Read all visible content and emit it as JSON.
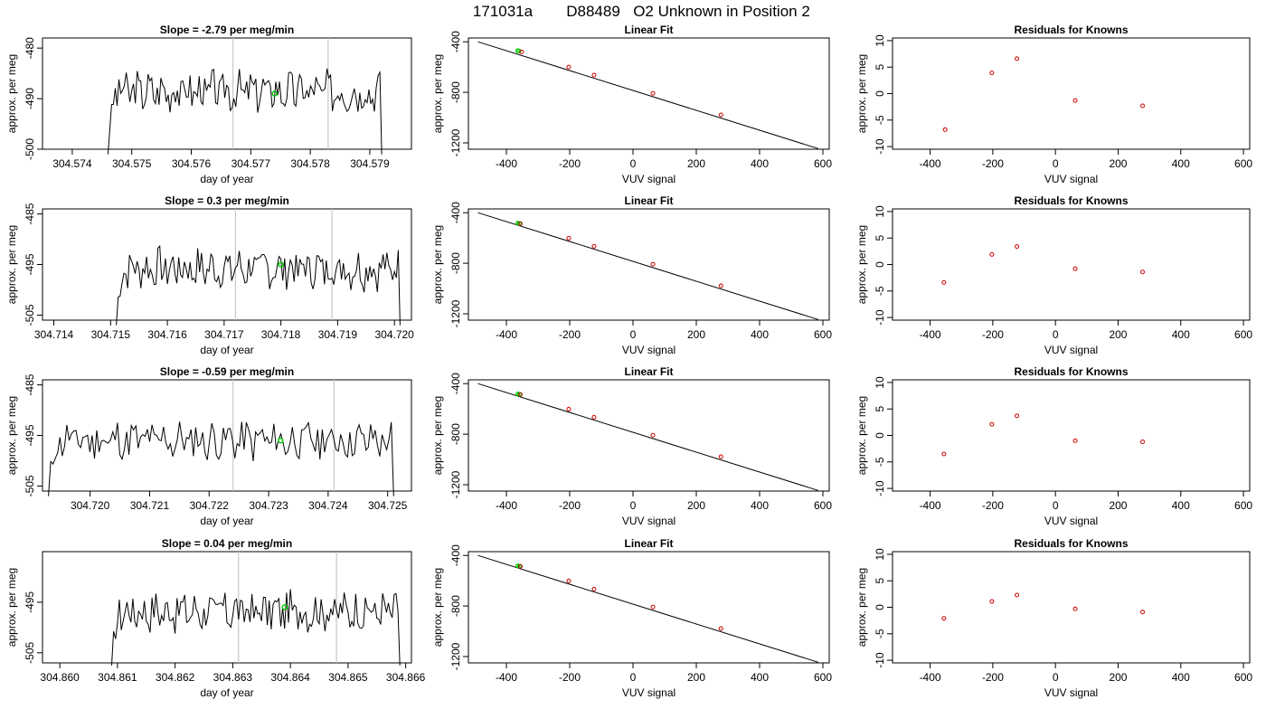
{
  "header": {
    "run_id": "171031a",
    "sample_id": "D88489",
    "description": "O2 Unknown in Position  2"
  },
  "colors": {
    "trace": "#000000",
    "vertical_marker": "#c8c8c8",
    "unknown_point": "#00cc00",
    "known_point": "#cc0000",
    "fit_line": "#000000"
  },
  "chart_data": [
    {
      "type": "line",
      "panel": "time-series",
      "row": 1,
      "title": "Slope =  -2.79  per meg/min",
      "xlabel": "day of year",
      "ylabel": "approx. per meg",
      "xlim": [
        304.5735,
        304.5797
      ],
      "ylim": [
        -500,
        -478
      ],
      "xticks": [
        304.574,
        304.575,
        304.576,
        304.577,
        304.578,
        304.579
      ],
      "xtick_labels": [
        "304.574",
        "304.575",
        "304.576",
        "304.577",
        "304.578",
        "304.579"
      ],
      "yticks": [
        -500,
        -490,
        -480
      ],
      "ytick_labels": [
        "-500",
        "-490",
        "-480"
      ],
      "vlines": [
        304.5767,
        304.5783
      ],
      "trace_x_start": 304.5746,
      "trace_x_end": 304.5792,
      "trace_level": -488.5,
      "trace_edge": -501,
      "seed": 3,
      "unknown_marker": {
        "x": 304.5774,
        "y": -489
      }
    },
    {
      "type": "scatter",
      "panel": "linear-fit",
      "row": 1,
      "title": "Linear Fit",
      "xlabel": "VUV signal",
      "ylabel": "approx. per meg",
      "xlim": [
        -520,
        620
      ],
      "ylim": [
        -1250,
        -370
      ],
      "xticks": [
        -400,
        -200,
        0,
        200,
        400,
        600
      ],
      "xtick_labels": [
        "-400",
        "-200",
        "0",
        "200",
        "400",
        "600"
      ],
      "yticks": [
        -1200,
        -800,
        -400
      ],
      "ytick_labels": [
        "-1200",
        "-800",
        "-400"
      ],
      "fit_line": {
        "x": [
          -490,
          585
        ],
        "y": [
          -400,
          -1245
        ]
      },
      "known_points": {
        "x": [
          -352,
          -203,
          -123,
          63,
          278
        ],
        "y": [
          -480,
          -600,
          -663,
          -808,
          -978
        ]
      },
      "unknown_points": {
        "x": [
          -364,
          -360
        ],
        "y": [
          -470,
          -473
        ]
      }
    },
    {
      "type": "scatter",
      "panel": "residuals",
      "row": 1,
      "title": "Residuals for Knowns",
      "xlabel": "VUV signal",
      "ylabel": "approx. per meg",
      "xlim": [
        -520,
        620
      ],
      "ylim": [
        -10.5,
        10.5
      ],
      "xticks": [
        -400,
        -200,
        0,
        200,
        400,
        600
      ],
      "xtick_labels": [
        "-400",
        "-200",
        "0",
        "200",
        "400",
        "600"
      ],
      "yticks": [
        -10,
        -5,
        0,
        5,
        10
      ],
      "ytick_labels": [
        "-10",
        "-5",
        "0",
        "5",
        "10"
      ],
      "known_points": {
        "x": [
          -352,
          -203,
          -123,
          63,
          278
        ],
        "y": [
          -6.8,
          3.9,
          6.6,
          -1.3,
          -2.3
        ]
      }
    },
    {
      "type": "line",
      "panel": "time-series",
      "row": 2,
      "title": "Slope =  0.3  per meg/min",
      "xlabel": "day of year",
      "ylabel": "approx. per meg",
      "xlim": [
        304.7138,
        304.7203
      ],
      "ylim": [
        -506,
        -484
      ],
      "xticks": [
        304.714,
        304.715,
        304.716,
        304.717,
        304.718,
        304.719,
        304.72
      ],
      "xtick_labels": [
        "304.714",
        "304.715",
        "304.716",
        "304.717",
        "304.718",
        "304.719",
        "304.720"
      ],
      "yticks": [
        -505,
        -495,
        -485
      ],
      "ytick_labels": [
        "-505",
        "-495",
        "-485"
      ],
      "vlines": [
        304.7172,
        304.7189
      ],
      "trace_x_start": 304.7151,
      "trace_x_end": 304.7201,
      "trace_level": -495.8,
      "trace_edge": -507,
      "seed": 7,
      "unknown_marker": {
        "x": 304.718,
        "y": -495
      }
    },
    {
      "type": "scatter",
      "panel": "linear-fit",
      "row": 2,
      "title": "Linear Fit",
      "xlabel": "VUV signal",
      "ylabel": "approx. per meg",
      "xlim": [
        -520,
        620
      ],
      "ylim": [
        -1250,
        -370
      ],
      "xticks": [
        -400,
        -200,
        0,
        200,
        400,
        600
      ],
      "xtick_labels": [
        "-400",
        "-200",
        "0",
        "200",
        "400",
        "600"
      ],
      "yticks": [
        -1200,
        -800,
        -400
      ],
      "ytick_labels": [
        "-1200",
        "-800",
        "-400"
      ],
      "fit_line": {
        "x": [
          -490,
          585
        ],
        "y": [
          -400,
          -1245
        ]
      },
      "known_points": {
        "x": [
          -356,
          -203,
          -123,
          63,
          278
        ],
        "y": [
          -486,
          -602,
          -666,
          -808,
          -978
        ]
      },
      "unknown_points": {
        "x": [
          -364,
          -359
        ],
        "y": [
          -482,
          -485
        ]
      }
    },
    {
      "type": "scatter",
      "panel": "residuals",
      "row": 2,
      "title": "Residuals for Knowns",
      "xlabel": "VUV signal",
      "ylabel": "approx. per meg",
      "xlim": [
        -520,
        620
      ],
      "ylim": [
        -10.5,
        10.5
      ],
      "xticks": [
        -400,
        -200,
        0,
        200,
        400,
        600
      ],
      "xtick_labels": [
        "-400",
        "-200",
        "0",
        "200",
        "400",
        "600"
      ],
      "yticks": [
        -10,
        -5,
        0,
        5,
        10
      ],
      "ytick_labels": [
        "-10",
        "-5",
        "0",
        "5",
        "10"
      ],
      "known_points": {
        "x": [
          -356,
          -203,
          -123,
          63,
          278
        ],
        "y": [
          -3.4,
          1.9,
          3.4,
          -0.8,
          -1.4
        ]
      }
    },
    {
      "type": "line",
      "panel": "time-series",
      "row": 3,
      "title": "Slope =  -0.59  per meg/min",
      "xlabel": "day of year",
      "ylabel": "approx. per meg",
      "xlim": [
        304.7192,
        304.7254
      ],
      "ylim": [
        -506,
        -484
      ],
      "xticks": [
        304.72,
        304.721,
        304.722,
        304.723,
        304.724,
        304.725
      ],
      "xtick_labels": [
        "304.720",
        "304.721",
        "304.722",
        "304.723",
        "304.724",
        "304.725"
      ],
      "yticks": [
        -505,
        -495,
        -485
      ],
      "ytick_labels": [
        "-505",
        "-495",
        "-485"
      ],
      "vlines": [
        304.7224,
        304.7241
      ],
      "trace_x_start": 304.7193,
      "trace_x_end": 304.7251,
      "trace_level": -496.0,
      "trace_edge": -507,
      "seed": 11,
      "unknown_marker": {
        "x": 304.7232,
        "y": -496
      }
    },
    {
      "type": "scatter",
      "panel": "linear-fit",
      "row": 3,
      "title": "Linear Fit",
      "xlabel": "VUV signal",
      "ylabel": "approx. per meg",
      "xlim": [
        -520,
        620
      ],
      "ylim": [
        -1250,
        -370
      ],
      "xticks": [
        -400,
        -200,
        0,
        200,
        400,
        600
      ],
      "xtick_labels": [
        "-400",
        "-200",
        "0",
        "200",
        "400",
        "600"
      ],
      "yticks": [
        -1200,
        -800,
        -400
      ],
      "ytick_labels": [
        "-1200",
        "-800",
        "-400"
      ],
      "fit_line": {
        "x": [
          -490,
          585
        ],
        "y": [
          -400,
          -1245
        ]
      },
      "known_points": {
        "x": [
          -356,
          -203,
          -123,
          63,
          278
        ],
        "y": [
          -486,
          -602,
          -666,
          -808,
          -978
        ]
      },
      "unknown_points": {
        "x": [
          -364,
          -359
        ],
        "y": [
          -482,
          -485
        ]
      }
    },
    {
      "type": "scatter",
      "panel": "residuals",
      "row": 3,
      "title": "Residuals for Knowns",
      "xlabel": "VUV signal",
      "ylabel": "approx. per meg",
      "xlim": [
        -520,
        620
      ],
      "ylim": [
        -10.5,
        10.5
      ],
      "xticks": [
        -400,
        -200,
        0,
        200,
        400,
        600
      ],
      "xtick_labels": [
        "-400",
        "-200",
        "0",
        "200",
        "400",
        "600"
      ],
      "yticks": [
        -10,
        -5,
        0,
        5,
        10
      ],
      "ytick_labels": [
        "-10",
        "-5",
        "0",
        "5",
        "10"
      ],
      "known_points": {
        "x": [
          -356,
          -203,
          -123,
          63,
          278
        ],
        "y": [
          -3.5,
          2.1,
          3.7,
          -1.0,
          -1.2
        ]
      }
    },
    {
      "type": "line",
      "panel": "time-series",
      "row": 4,
      "title": "Slope =  0.04  per meg/min",
      "xlabel": "day of year",
      "ylabel": "approx. per meg",
      "xlim": [
        304.8597,
        304.8661
      ],
      "ylim": [
        -507,
        -485
      ],
      "xticks": [
        304.86,
        304.861,
        304.862,
        304.863,
        304.864,
        304.865,
        304.866
      ],
      "xtick_labels": [
        "304.860",
        "304.861",
        "304.862",
        "304.863",
        "304.864",
        "304.865",
        "304.866"
      ],
      "yticks": [
        -505,
        -495
      ],
      "ytick_labels": [
        "-505",
        "-495"
      ],
      "vlines": [
        304.8631,
        304.8648
      ],
      "trace_x_start": 304.8609,
      "trace_x_end": 304.8659,
      "trace_level": -496.8,
      "trace_edge": -507.5,
      "seed": 17,
      "unknown_marker": {
        "x": 304.8639,
        "y": -496
      }
    },
    {
      "type": "scatter",
      "panel": "linear-fit",
      "row": 4,
      "title": "Linear Fit",
      "xlabel": "VUV signal",
      "ylabel": "approx. per meg",
      "xlim": [
        -520,
        620
      ],
      "ylim": [
        -1250,
        -370
      ],
      "xticks": [
        -400,
        -200,
        0,
        200,
        400,
        600
      ],
      "xtick_labels": [
        "-400",
        "-200",
        "0",
        "200",
        "400",
        "600"
      ],
      "yticks": [
        -1200,
        -800,
        -400
      ],
      "ytick_labels": [
        "-1200",
        "-800",
        "-400"
      ],
      "fit_line": {
        "x": [
          -490,
          585
        ],
        "y": [
          -400,
          -1245
        ]
      },
      "known_points": {
        "x": [
          -356,
          -203,
          -123,
          63,
          278
        ],
        "y": [
          -486,
          -602,
          -666,
          -808,
          -978
        ]
      },
      "unknown_points": {
        "x": [
          -364,
          -359
        ],
        "y": [
          -482,
          -485
        ]
      }
    },
    {
      "type": "scatter",
      "panel": "residuals",
      "row": 4,
      "title": "Residuals for Knowns",
      "xlabel": "VUV signal",
      "ylabel": "approx. per meg",
      "xlim": [
        -520,
        620
      ],
      "ylim": [
        -10.5,
        10.5
      ],
      "xticks": [
        -400,
        -200,
        0,
        200,
        400,
        600
      ],
      "xtick_labels": [
        "-400",
        "-200",
        "0",
        "200",
        "400",
        "600"
      ],
      "yticks": [
        -10,
        -5,
        0,
        5,
        10
      ],
      "ytick_labels": [
        "-10",
        "-5",
        "0",
        "5",
        "10"
      ],
      "known_points": {
        "x": [
          -356,
          -203,
          -123,
          63,
          278
        ],
        "y": [
          -2.1,
          1.1,
          2.3,
          -0.3,
          -0.9
        ]
      }
    }
  ]
}
